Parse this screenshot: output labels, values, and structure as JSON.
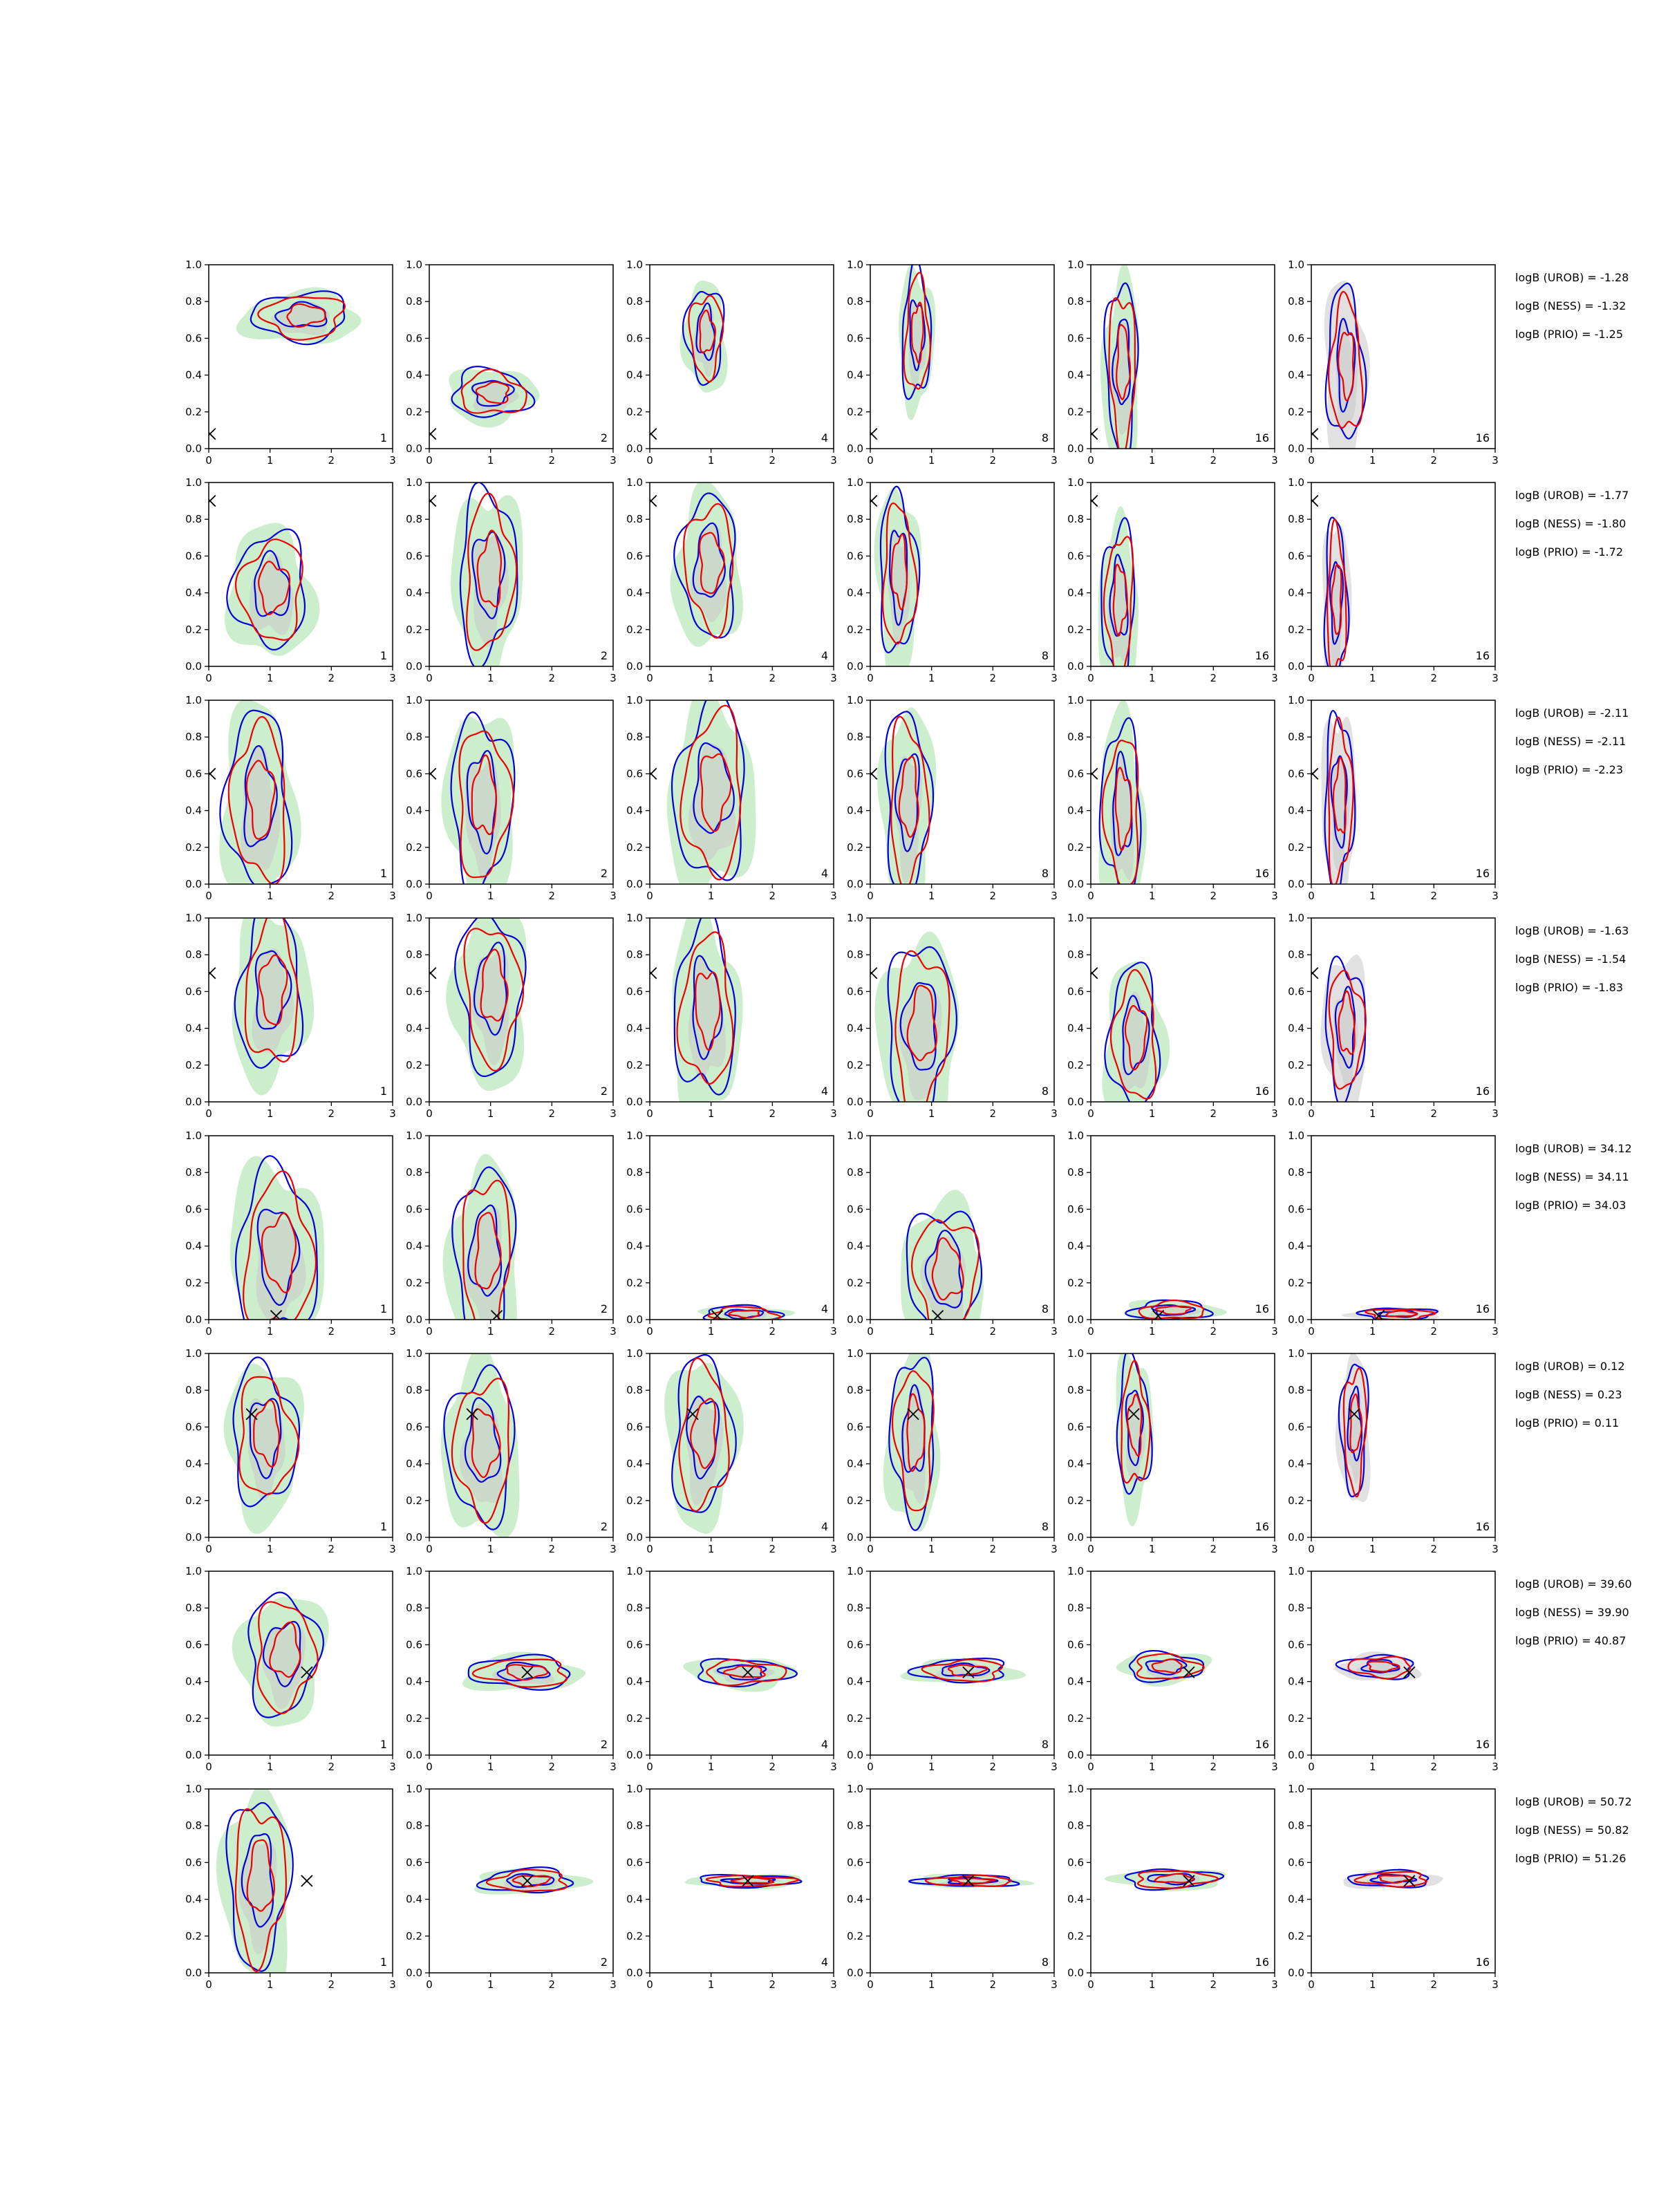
{
  "chart_data": {
    "type": "contour-grid",
    "rows": 8,
    "cols": 6,
    "xlim": [
      0,
      3
    ],
    "ylim": [
      0,
      1
    ],
    "xticks": [
      "0",
      "1",
      "2",
      "3"
    ],
    "yticks": [
      "0.0",
      "0.2",
      "0.4",
      "0.6",
      "0.8",
      "1.0"
    ],
    "panel_labels": [
      "1",
      "2",
      "4",
      "8",
      "16",
      "16"
    ],
    "colors": {
      "green_fill": "#c6ecc6",
      "grey_fill": "#c8c8c8",
      "light_grey_fill": "#dedede",
      "blue": "#0000dd",
      "red": "#ee0000",
      "marker": "#000000"
    },
    "rows_data": [
      {
        "truth": [
          0.02,
          0.08
        ],
        "logB": [
          "logB (UROB) = -1.28",
          "logB (NESS) = -1.32",
          "logB (PRIO) = -1.25"
        ],
        "blobs": [
          {
            "cx": 1.5,
            "cy": 0.72,
            "sx": 0.75,
            "sy": 0.12
          },
          {
            "cx": 1.0,
            "cy": 0.3,
            "sx": 0.6,
            "sy": 0.12
          },
          {
            "cx": 0.9,
            "cy": 0.62,
            "sx": 0.28,
            "sy": 0.25
          },
          {
            "cx": 0.75,
            "cy": 0.62,
            "sx": 0.22,
            "sy": 0.33
          },
          {
            "cx": 0.5,
            "cy": 0.45,
            "sx": 0.25,
            "sy": 0.42
          },
          {
            "cx": 0.55,
            "cy": 0.45,
            "sx": 0.28,
            "sy": 0.4
          }
        ]
      },
      {
        "truth": [
          0.02,
          0.9
        ],
        "logB": [
          "logB (UROB) = -1.77",
          "logB (NESS) = -1.80",
          "logB (PRIO) = -1.72"
        ],
        "blobs": [
          {
            "cx": 1.0,
            "cy": 0.42,
            "sx": 0.55,
            "sy": 0.3
          },
          {
            "cx": 0.95,
            "cy": 0.5,
            "sx": 0.45,
            "sy": 0.42
          },
          {
            "cx": 0.95,
            "cy": 0.55,
            "sx": 0.45,
            "sy": 0.35
          },
          {
            "cx": 0.45,
            "cy": 0.5,
            "sx": 0.28,
            "sy": 0.42
          },
          {
            "cx": 0.45,
            "cy": 0.35,
            "sx": 0.25,
            "sy": 0.4
          },
          {
            "cx": 0.4,
            "cy": 0.35,
            "sx": 0.18,
            "sy": 0.4
          }
        ]
      },
      {
        "truth": [
          0.02,
          0.6
        ],
        "logB": [
          "logB (UROB) = -2.11",
          "logB (NESS) = -2.11",
          "logB (PRIO) = -2.23"
        ],
        "blobs": [
          {
            "cx": 0.8,
            "cy": 0.45,
            "sx": 0.5,
            "sy": 0.45
          },
          {
            "cx": 0.85,
            "cy": 0.45,
            "sx": 0.45,
            "sy": 0.45
          },
          {
            "cx": 1.0,
            "cy": 0.5,
            "sx": 0.55,
            "sy": 0.45
          },
          {
            "cx": 0.6,
            "cy": 0.45,
            "sx": 0.35,
            "sy": 0.45
          },
          {
            "cx": 0.5,
            "cy": 0.4,
            "sx": 0.3,
            "sy": 0.45
          },
          {
            "cx": 0.45,
            "cy": 0.45,
            "sx": 0.22,
            "sy": 0.45
          }
        ]
      },
      {
        "truth": [
          0.02,
          0.7
        ],
        "logB": [
          "logB (UROB) = -1.63",
          "logB (NESS) = -1.54",
          "logB (PRIO) = -1.83"
        ],
        "blobs": [
          {
            "cx": 1.0,
            "cy": 0.6,
            "sx": 0.5,
            "sy": 0.4
          },
          {
            "cx": 1.0,
            "cy": 0.6,
            "sx": 0.5,
            "sy": 0.4
          },
          {
            "cx": 0.9,
            "cy": 0.5,
            "sx": 0.45,
            "sy": 0.45
          },
          {
            "cx": 0.8,
            "cy": 0.4,
            "sx": 0.5,
            "sy": 0.45
          },
          {
            "cx": 0.7,
            "cy": 0.35,
            "sx": 0.4,
            "sy": 0.35
          },
          {
            "cx": 0.55,
            "cy": 0.4,
            "sx": 0.3,
            "sy": 0.35
          }
        ]
      },
      {
        "truth": [
          1.1,
          0.02
        ],
        "logB": [
          "logB (UROB) = 34.12",
          "logB (NESS) = 34.11",
          "logB (PRIO) = 34.03"
        ],
        "blobs": [
          {
            "cx": 1.1,
            "cy": 0.35,
            "sx": 0.6,
            "sy": 0.45
          },
          {
            "cx": 0.9,
            "cy": 0.35,
            "sx": 0.45,
            "sy": 0.45
          },
          {
            "cx": 1.5,
            "cy": 0.03,
            "sx": 0.6,
            "sy": 0.04
          },
          {
            "cx": 1.2,
            "cy": 0.25,
            "sx": 0.55,
            "sy": 0.35
          },
          {
            "cx": 1.3,
            "cy": 0.05,
            "sx": 0.6,
            "sy": 0.05
          },
          {
            "cx": 1.4,
            "cy": 0.03,
            "sx": 0.6,
            "sy": 0.03
          }
        ]
      },
      {
        "truth": [
          0.7,
          0.67
        ],
        "logB": [
          "logB (UROB) = 0.12",
          "logB (NESS) = 0.23",
          "logB (PRIO) = 0.11"
        ],
        "blobs": [
          {
            "cx": 0.9,
            "cy": 0.55,
            "sx": 0.5,
            "sy": 0.35
          },
          {
            "cx": 0.85,
            "cy": 0.5,
            "sx": 0.5,
            "sy": 0.4
          },
          {
            "cx": 0.85,
            "cy": 0.55,
            "sx": 0.45,
            "sy": 0.4
          },
          {
            "cx": 0.7,
            "cy": 0.55,
            "sx": 0.35,
            "sy": 0.4
          },
          {
            "cx": 0.7,
            "cy": 0.6,
            "sx": 0.25,
            "sy": 0.35
          },
          {
            "cx": 0.7,
            "cy": 0.6,
            "sx": 0.2,
            "sy": 0.35
          }
        ]
      },
      {
        "truth": [
          1.6,
          0.45
        ],
        "logB": [
          "logB (UROB) = 39.60",
          "logB (NESS) = 39.90",
          "logB (PRIO) = 40.87"
        ],
        "blobs": [
          {
            "cx": 1.2,
            "cy": 0.55,
            "sx": 0.55,
            "sy": 0.3
          },
          {
            "cx": 1.5,
            "cy": 0.45,
            "sx": 0.8,
            "sy": 0.08
          },
          {
            "cx": 1.5,
            "cy": 0.45,
            "sx": 0.7,
            "sy": 0.07
          },
          {
            "cx": 1.5,
            "cy": 0.46,
            "sx": 0.7,
            "sy": 0.06
          },
          {
            "cx": 1.2,
            "cy": 0.48,
            "sx": 0.6,
            "sy": 0.07
          },
          {
            "cx": 1.1,
            "cy": 0.48,
            "sx": 0.55,
            "sy": 0.06
          }
        ]
      },
      {
        "truth": [
          1.6,
          0.5
        ],
        "logB": [
          "logB (UROB) = 50.72",
          "logB (NESS) = 50.82",
          "logB (PRIO) = 51.26"
        ],
        "blobs": [
          {
            "cx": 0.8,
            "cy": 0.5,
            "sx": 0.45,
            "sy": 0.45
          },
          {
            "cx": 1.6,
            "cy": 0.5,
            "sx": 0.7,
            "sy": 0.06
          },
          {
            "cx": 1.6,
            "cy": 0.5,
            "sx": 0.8,
            "sy": 0.03
          },
          {
            "cx": 1.6,
            "cy": 0.5,
            "sx": 0.75,
            "sy": 0.03
          },
          {
            "cx": 1.3,
            "cy": 0.51,
            "sx": 0.7,
            "sy": 0.05
          },
          {
            "cx": 1.3,
            "cy": 0.51,
            "sx": 0.65,
            "sy": 0.04
          }
        ]
      }
    ]
  }
}
